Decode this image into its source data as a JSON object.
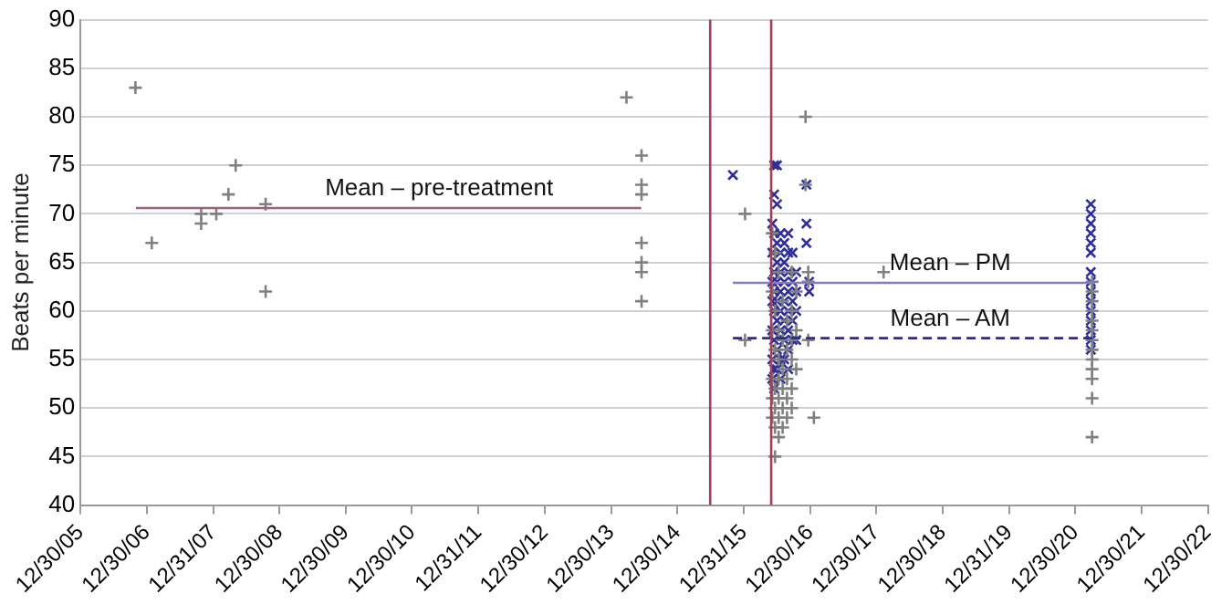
{
  "chart_data": {
    "type": "scatter",
    "ylabel": "Beats per minute",
    "ylim": [
      40,
      90
    ],
    "yticks": [
      40,
      45,
      50,
      55,
      60,
      65,
      70,
      75,
      80,
      85,
      90
    ],
    "xlim": [
      "2005-12-30",
      "2022-12-30"
    ],
    "xticks": [
      {
        "value": "2005-12-30",
        "label": "12/30/05"
      },
      {
        "value": "2006-12-30",
        "label": "12/30/06"
      },
      {
        "value": "2007-12-31",
        "label": "12/31/07"
      },
      {
        "value": "2008-12-30",
        "label": "12/30/08"
      },
      {
        "value": "2009-12-30",
        "label": "12/30/09"
      },
      {
        "value": "2010-12-30",
        "label": "12/30/10"
      },
      {
        "value": "2011-12-31",
        "label": "12/31/11"
      },
      {
        "value": "2012-12-30",
        "label": "12/30/12"
      },
      {
        "value": "2013-12-30",
        "label": "12/30/13"
      },
      {
        "value": "2014-12-30",
        "label": "12/30/14"
      },
      {
        "value": "2015-12-31",
        "label": "12/31/15"
      },
      {
        "value": "2016-12-30",
        "label": "12/30/16"
      },
      {
        "value": "2017-12-30",
        "label": "12/30/17"
      },
      {
        "value": "2018-12-30",
        "label": "12/30/18"
      },
      {
        "value": "2019-12-31",
        "label": "12/31/19"
      },
      {
        "value": "2020-12-30",
        "label": "12/30/20"
      },
      {
        "value": "2021-12-30",
        "label": "12/30/21"
      },
      {
        "value": "2022-12-30",
        "label": "12/30/22"
      }
    ],
    "grid": "y",
    "legend": false,
    "ref_lines": [
      {
        "axis": "x",
        "value": "2015-06-29",
        "color": "#a04058"
      },
      {
        "axis": "x",
        "value": "2016-05-30",
        "color": "#a04058"
      }
    ],
    "series": [
      {
        "color": "#808080",
        "marker": "cross",
        "x": [
          "2006-10-29",
          "2007-01-27",
          "2007-10-26",
          "2007-10-26",
          "2008-01-17",
          "2008-03-24",
          "2008-05-03",
          "2008-10-15",
          "2008-10-15",
          "2014-03-25",
          "2014-06-16",
          "2014-06-16",
          "2014-06-16",
          "2014-06-16",
          "2014-06-16",
          "2014-06-16",
          "2014-06-16",
          "2016-01-07",
          "2016-01-07",
          "2016-06-05",
          "2016-06-05",
          "2016-06-05",
          "2016-06-05",
          "2016-06-05",
          "2016-06-05",
          "2016-06-20",
          "2016-06-20",
          "2016-06-20",
          "2016-06-20",
          "2016-06-20",
          "2016-06-20",
          "2016-06-20",
          "2016-07-10",
          "2016-07-10",
          "2016-07-10",
          "2016-07-10",
          "2016-07-10",
          "2016-07-10",
          "2016-07-10",
          "2016-08-01",
          "2016-08-01",
          "2016-08-01",
          "2016-08-01",
          "2016-08-01",
          "2016-08-01",
          "2016-08-25",
          "2016-08-25",
          "2016-08-25",
          "2016-08-25",
          "2016-08-25",
          "2016-09-20",
          "2016-09-20",
          "2016-09-20",
          "2016-09-20",
          "2016-09-20",
          "2016-09-20",
          "2016-10-15",
          "2016-10-15",
          "2016-10-15",
          "2016-12-05",
          "2016-12-05",
          "2016-12-20",
          "2016-12-20",
          "2016-12-20",
          "2017-01-20",
          "2018-02-08",
          "2021-04-01",
          "2021-04-01",
          "2021-04-01",
          "2021-04-01",
          "2021-04-01",
          "2021-04-01",
          "2021-04-01",
          "2021-04-01",
          "2021-04-01",
          "2021-04-01",
          "2021-04-01",
          "2021-04-01",
          "2021-04-01"
        ],
        "values": [
          83,
          67,
          70,
          69,
          70,
          72,
          75,
          71,
          62,
          82,
          76,
          73,
          72,
          67,
          65,
          64,
          61,
          70,
          57,
          68,
          62,
          58,
          53,
          51,
          49,
          66,
          60,
          56,
          52,
          50,
          48,
          45,
          64,
          58,
          55,
          53,
          51,
          49,
          47,
          61,
          57,
          54,
          52,
          50,
          48,
          59,
          56,
          53,
          51,
          49,
          64,
          60,
          57,
          55,
          52,
          50,
          62,
          58,
          54,
          80,
          73,
          64,
          63,
          57,
          49,
          64,
          63,
          62,
          61,
          60,
          59,
          58,
          57,
          56,
          55,
          54,
          53,
          51,
          47
        ]
      },
      {
        "color": "#2e2e9a",
        "marker": "x",
        "x": [
          "2015-11-01",
          "2016-06-05",
          "2016-06-05",
          "2016-06-05",
          "2016-06-05",
          "2016-06-05",
          "2016-06-05",
          "2016-06-05",
          "2016-06-15",
          "2016-06-15",
          "2016-06-15",
          "2016-06-15",
          "2016-06-15",
          "2016-06-15",
          "2016-06-15",
          "2016-06-15",
          "2016-06-15",
          "2016-07-01",
          "2016-07-01",
          "2016-07-01",
          "2016-07-01",
          "2016-07-01",
          "2016-07-01",
          "2016-07-01",
          "2016-07-01",
          "2016-07-01",
          "2016-07-20",
          "2016-07-20",
          "2016-07-20",
          "2016-07-20",
          "2016-07-20",
          "2016-07-20",
          "2016-07-20",
          "2016-07-20",
          "2016-08-10",
          "2016-08-10",
          "2016-08-10",
          "2016-08-10",
          "2016-08-10",
          "2016-08-10",
          "2016-08-10",
          "2016-09-01",
          "2016-09-01",
          "2016-09-01",
          "2016-09-01",
          "2016-09-01",
          "2016-09-01",
          "2016-09-01",
          "2016-09-01",
          "2016-09-25",
          "2016-09-25",
          "2016-09-25",
          "2016-09-25",
          "2016-09-25",
          "2016-10-15",
          "2016-10-15",
          "2016-10-15",
          "2016-10-15",
          "2016-12-10",
          "2016-12-10",
          "2016-12-10",
          "2016-12-25",
          "2016-12-25",
          "2021-03-25",
          "2021-03-25",
          "2021-03-25",
          "2021-03-25",
          "2021-03-25",
          "2021-03-25",
          "2021-03-25",
          "2021-03-25",
          "2021-03-25",
          "2021-03-25",
          "2021-03-25",
          "2021-03-25",
          "2021-03-25",
          "2021-03-25",
          "2021-03-25"
        ],
        "values": [
          74,
          69,
          66,
          63,
          61,
          58,
          55,
          53,
          75,
          72,
          68,
          64,
          62,
          60,
          57,
          54,
          52,
          75,
          71,
          67,
          65,
          63,
          61,
          59,
          56,
          54,
          68,
          66,
          64,
          62,
          60,
          58,
          55,
          53,
          67,
          65,
          63,
          61,
          59,
          57,
          55,
          68,
          66,
          64,
          62,
          60,
          58,
          56,
          54,
          66,
          63,
          61,
          59,
          57,
          64,
          62,
          60,
          57,
          73,
          69,
          67,
          63,
          62,
          71,
          70,
          69,
          68,
          67,
          66,
          64,
          63,
          62,
          61,
          60,
          59,
          58,
          57,
          56
        ]
      },
      {
        "type": "line",
        "name": "Mean – pre-treatment",
        "color": "#a0606e",
        "marker": "none",
        "line_style": "solid",
        "x": [
          "2006-11-01",
          "2014-06-14"
        ],
        "values": [
          70.6,
          70.6
        ]
      },
      {
        "type": "line",
        "name": "Mean – PM",
        "color": "#8878c0",
        "marker": "none",
        "line_style": "solid",
        "x": [
          "2015-11-01",
          "2021-04-18"
        ],
        "values": [
          62.9,
          62.9
        ]
      },
      {
        "type": "line",
        "name": "Mean – AM",
        "color": "#2a2a9c",
        "marker": "none",
        "line_style": "dashed",
        "x": [
          "2015-11-01",
          "2021-04-18"
        ],
        "values": [
          57.2,
          57.2
        ]
      }
    ]
  }
}
